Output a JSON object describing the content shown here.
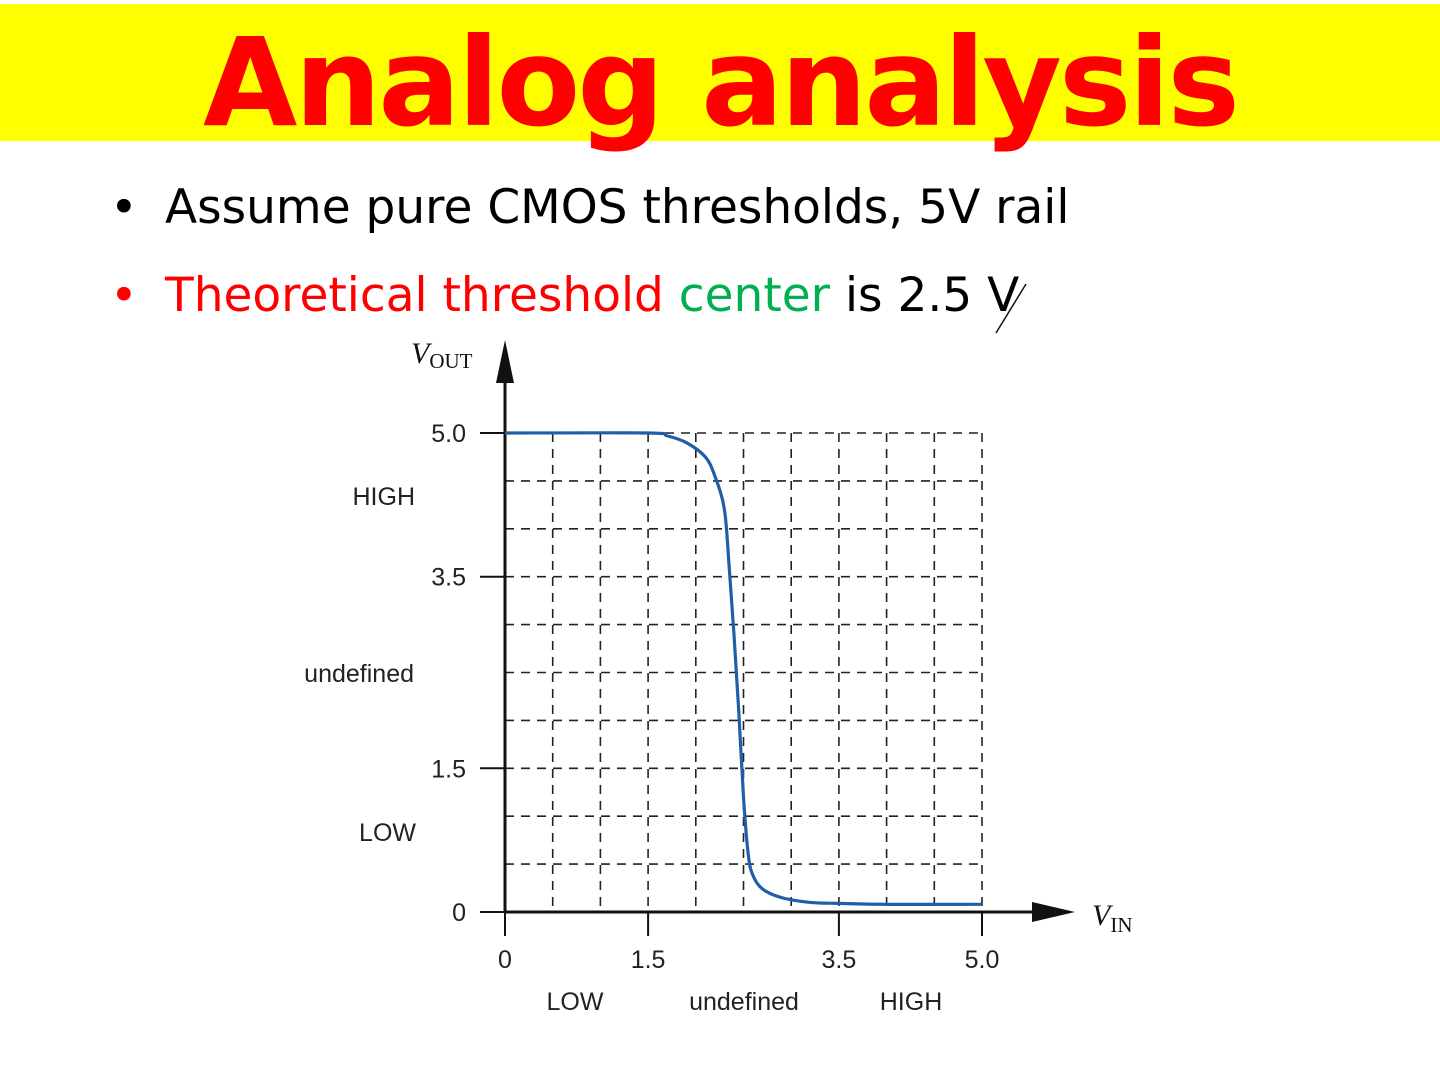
{
  "slide": {
    "title": "Analog analysis",
    "bullets": [
      {
        "bullet": "•",
        "segments": [
          {
            "text": "Assume pure CMOS thresholds, 5V rail",
            "color": "black"
          }
        ]
      },
      {
        "bullet": "•",
        "segments": [
          {
            "text": "Theoretical threshold ",
            "color": "red"
          },
          {
            "text": "center",
            "color": "green"
          },
          {
            "text": " is 2.5 V",
            "color": "black"
          }
        ]
      }
    ]
  },
  "colors": {
    "banner": "#ffff00",
    "title": "#ff0000",
    "red": "#ff0000",
    "green": "#00b050",
    "curve": "#1f5fa8"
  },
  "chart_data": {
    "type": "line",
    "x_axis_label": "V",
    "x_axis_sub": "IN",
    "y_axis_label": "V",
    "y_axis_sub": "OUT",
    "xlim": [
      0,
      5.0
    ],
    "ylim": [
      0,
      5.0
    ],
    "x_ticks": [
      "0",
      "1.5",
      "3.5",
      "5.0"
    ],
    "x_tick_values": [
      0,
      1.5,
      3.5,
      5.0
    ],
    "y_ticks": [
      "5.0",
      "3.5",
      "1.5",
      "0"
    ],
    "y_tick_values": [
      5.0,
      3.5,
      1.5,
      0
    ],
    "x_regions": [
      "LOW",
      "undefined",
      "HIGH"
    ],
    "y_regions": [
      "HIGH",
      "undefined",
      "LOW"
    ],
    "grid": true,
    "grid_style": "dashed",
    "series": [
      {
        "x": [
          0,
          1.5,
          1.7,
          1.9,
          2.1,
          2.2,
          2.3,
          2.35,
          2.4,
          2.45,
          2.5,
          2.55,
          2.6,
          2.7,
          2.9,
          3.2,
          3.5,
          4.0,
          5.0
        ],
        "y": [
          5.0,
          5.0,
          4.97,
          4.9,
          4.75,
          4.55,
          4.2,
          3.6,
          2.9,
          2.1,
          1.2,
          0.6,
          0.38,
          0.24,
          0.15,
          0.1,
          0.09,
          0.08,
          0.08
        ]
      }
    ]
  }
}
